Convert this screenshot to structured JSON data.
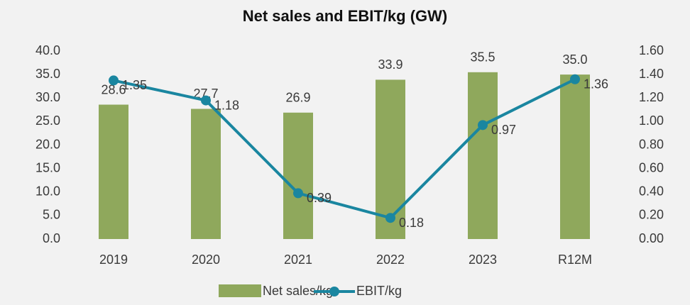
{
  "chart_data": {
    "type": "bar-line",
    "title": "Net sales and EBIT/kg (GW)",
    "categories": [
      "2019",
      "2020",
      "2021",
      "2022",
      "2023",
      "R12M"
    ],
    "series": [
      {
        "name": "Net sales/kg",
        "type": "bar",
        "color": "#8fa85c",
        "values": [
          28.6,
          27.7,
          26.9,
          33.9,
          35.5,
          35.0
        ],
        "value_labels": [
          "28.6",
          "27.7",
          "26.9",
          "33.9",
          "35.5",
          "35.0"
        ]
      },
      {
        "name": "EBIT/kg",
        "type": "line",
        "axis": "y2",
        "color": "#1a86a0",
        "values": [
          1.35,
          1.18,
          0.39,
          0.18,
          0.97,
          1.36
        ]
      }
    ],
    "ylim": [
      0,
      40
    ],
    "yticks": [
      {
        "value": 0,
        "label": "0.0"
      },
      {
        "value": 5,
        "label": "5.0"
      },
      {
        "value": 10,
        "label": "10.0"
      },
      {
        "value": 15,
        "label": "15.0"
      },
      {
        "value": 20,
        "label": "20.0"
      },
      {
        "value": 25,
        "label": "25.0"
      },
      {
        "value": 30,
        "label": "30.0"
      },
      {
        "value": 35,
        "label": "35.0"
      },
      {
        "value": 40,
        "label": "40.0"
      }
    ],
    "y2lim": [
      0,
      1.6
    ],
    "y2ticks": [
      {
        "value": 0,
        "label": "0.00"
      },
      {
        "value": 0.2,
        "label": "0.20"
      },
      {
        "value": 0.4,
        "label": "0.40"
      },
      {
        "value": 0.6,
        "label": "0.60"
      },
      {
        "value": 0.8,
        "label": "0.80"
      },
      {
        "value": 1.0,
        "label": "1.00"
      },
      {
        "value": 1.2,
        "label": "1.20"
      },
      {
        "value": 1.4,
        "label": "1.40"
      },
      {
        "value": 1.6,
        "label": "1.60"
      }
    ],
    "legend": "bottom"
  }
}
